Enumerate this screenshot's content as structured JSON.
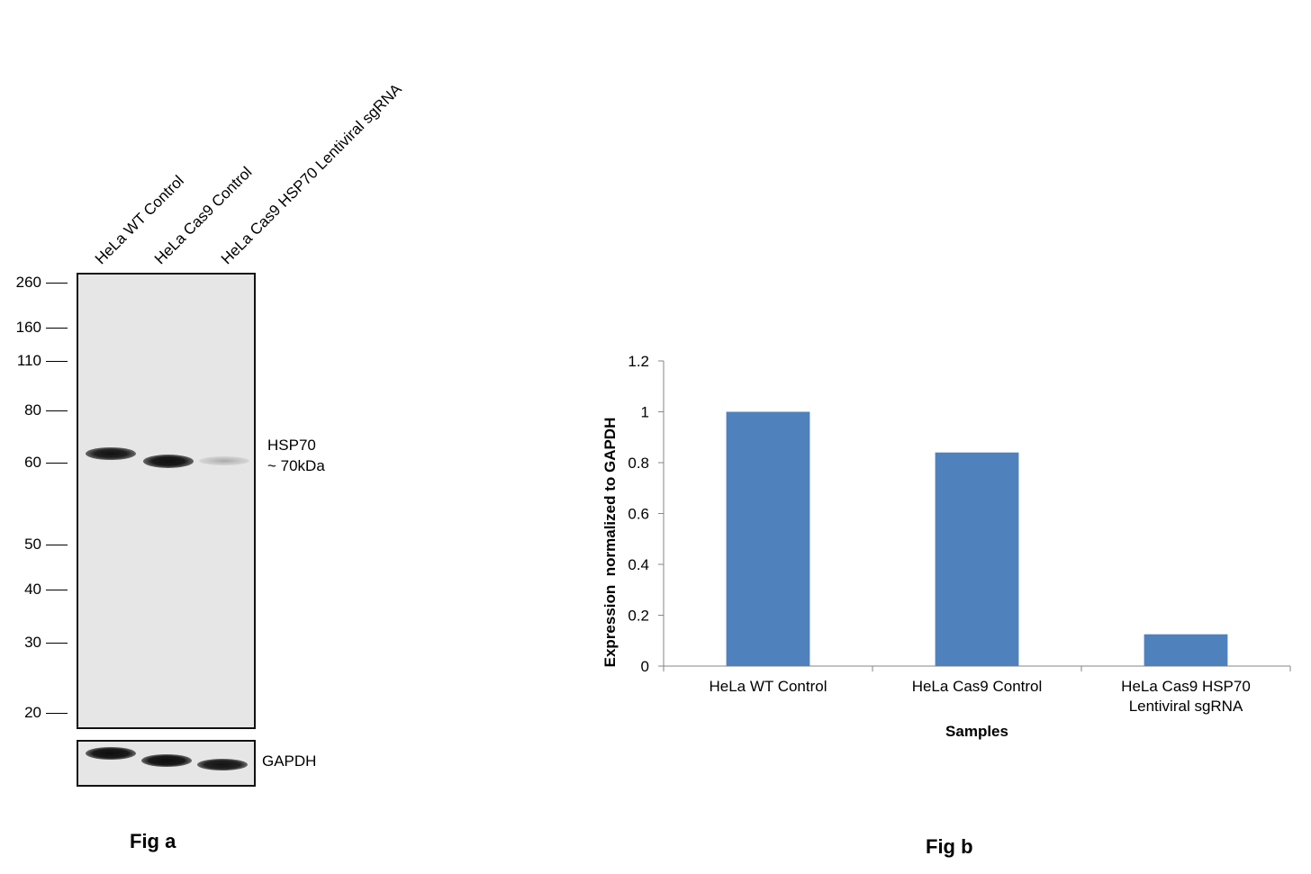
{
  "fig_a": {
    "caption": "Fig a",
    "lanes": [
      "HeLa WT Control",
      "HeLa Cas9 Control",
      "HeLa Cas9 HSP70 Lentiviral sgRNA"
    ],
    "mw_markers": [
      "260",
      "160",
      "110",
      "80",
      "60",
      "50",
      "40",
      "30",
      "20"
    ],
    "target_label": "HSP70",
    "target_size": "~ 70kDa",
    "loading_control_label": "GAPDH"
  },
  "fig_b": {
    "caption": "Fig b"
  },
  "chart_data": {
    "type": "bar",
    "categories": [
      "HeLa WT Control",
      "HeLa Cas9 Control",
      "HeLa Cas9 HSP70 Lentiviral sgRNA"
    ],
    "category_lines": [
      [
        "HeLa WT Control"
      ],
      [
        "HeLa Cas9 Control"
      ],
      [
        "HeLa Cas9 HSP70",
        "Lentiviral sgRNA"
      ]
    ],
    "values": [
      1.0,
      0.84,
      0.125
    ],
    "xlabel": "Samples",
    "ylabel": "Expression  normalized to GAPDH",
    "ylim": [
      0,
      1.2
    ],
    "yticks": [
      "0",
      "0.2",
      "0.4",
      "0.6",
      "0.8",
      "1",
      "1.2"
    ],
    "bar_color": "#4f81bd",
    "grid": false,
    "legend": "none"
  }
}
